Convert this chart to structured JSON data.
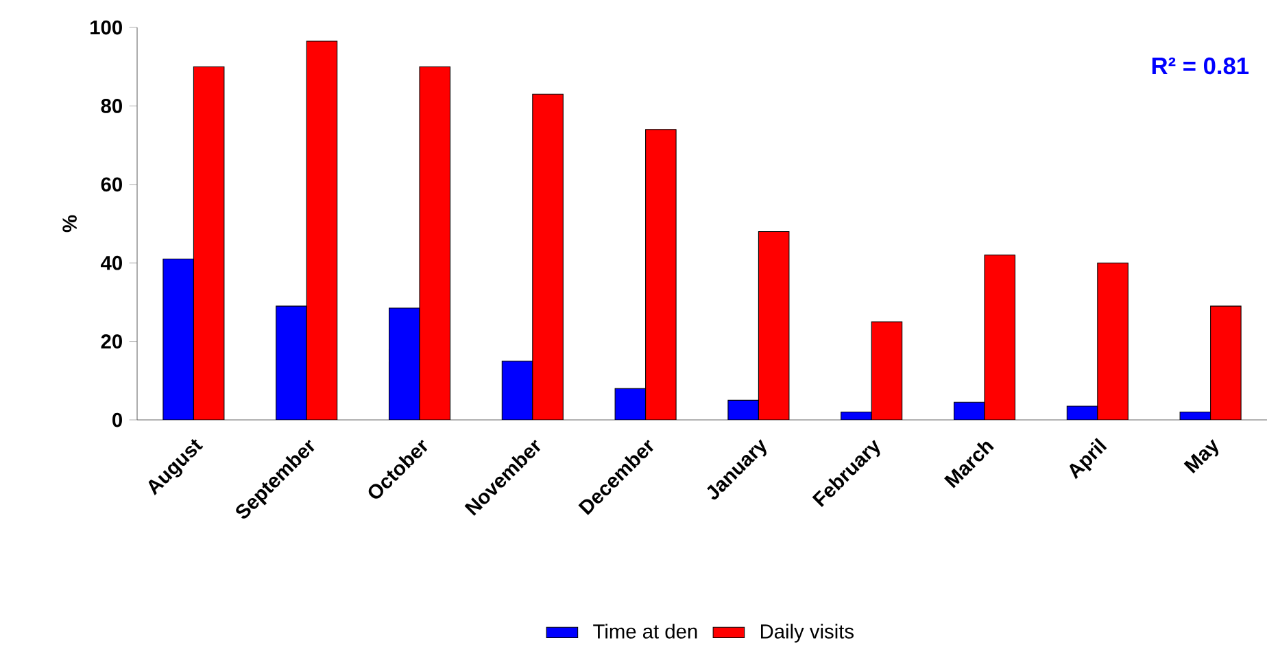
{
  "chart_data": {
    "type": "bar",
    "ylabel": "%",
    "categories": [
      "August",
      "September",
      "October",
      "November",
      "December",
      "January",
      "February",
      "March",
      "April",
      "May"
    ],
    "series": [
      {
        "name": "Time at den",
        "color": "#0000ff",
        "values": [
          41,
          29,
          28.5,
          15,
          8,
          5,
          2,
          4.5,
          3.5,
          2
        ]
      },
      {
        "name": "Daily visits",
        "color": "#ff0000",
        "values": [
          90,
          96.5,
          90,
          83,
          74,
          48,
          25,
          42,
          40,
          29
        ]
      }
    ],
    "annotations": [
      "R² = 0.81"
    ],
    "ylim": [
      0,
      100
    ],
    "yticks": [
      0,
      20,
      40,
      60,
      80,
      100
    ],
    "grid": false,
    "legend": "bottom"
  }
}
